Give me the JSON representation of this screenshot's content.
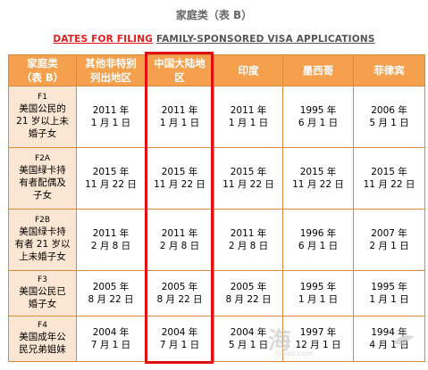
{
  "title": "家庭类（表 B）",
  "subtitle": {
    "part1": "DATES FOR FILING",
    "part2": "FAMILY-SPONSORED VISA APPLICATIONS"
  },
  "table": {
    "headers": [
      [
        "家庭类",
        "（表 B）"
      ],
      [
        "其他非特别",
        "列出地区"
      ],
      [
        "中国大陆地",
        "区"
      ],
      [
        "印度"
      ],
      [
        "墨西哥"
      ],
      [
        "菲律宾"
      ]
    ],
    "rows": [
      {
        "code": "F1",
        "desc": [
          "美国公民的",
          "21 岁以上未",
          "婚子女"
        ],
        "cells": [
          [
            "2011 年",
            "1 月 1 日"
          ],
          [
            "2011 年",
            "1 月 1 日"
          ],
          [
            "2011 年",
            "1 月 1 日"
          ],
          [
            "1995 年",
            "6 月 1 日"
          ],
          [
            "2006 年",
            "5 月 1 日"
          ]
        ]
      },
      {
        "code": "F2A",
        "desc": [
          "美国绿卡持",
          "有者配偶及",
          "子女"
        ],
        "cells": [
          [
            "2015 年",
            "11 月 22 日"
          ],
          [
            "2015 年",
            "11 月 22 日"
          ],
          [
            "2015 年",
            "11 月 22 日"
          ],
          [
            "2015 年",
            "11 月 22 日"
          ],
          [
            "2015 年",
            "11 月 22 日"
          ]
        ]
      },
      {
        "code": "F2B",
        "desc": [
          "美国绿卡持",
          "有者 21 岁以",
          "上未婚子女"
        ],
        "cells": [
          [
            "2011 年",
            "2 月 8 日"
          ],
          [
            "2011 年",
            "2 月 8 日"
          ],
          [
            "2011 年",
            "2 月 8 日"
          ],
          [
            "1996 年",
            "6 月 1 日"
          ],
          [
            "2007 年",
            "2 月 1 日"
          ]
        ]
      },
      {
        "code": "F3",
        "desc": [
          "美国公民已",
          "婚子女"
        ],
        "cells": [
          [
            "2005 年",
            "8 月 22 日"
          ],
          [
            "2005 年",
            "8 月 22 日"
          ],
          [
            "2005 年",
            "8 月 22 日"
          ],
          [
            "1995 年",
            "1 月 1 日"
          ],
          [
            "1995 年",
            "1 月 1 日"
          ]
        ]
      },
      {
        "code": "F4",
        "desc": [
          "美国成年公",
          "民兄弟姐妹"
        ],
        "cells": [
          [
            "2004 年",
            "7 月 1 日"
          ],
          [
            "2004 年",
            "7 月 1 日"
          ],
          [
            "2004 年",
            "5 月 1 日"
          ],
          [
            "1997 年",
            "12 月 1 日"
          ],
          [
            "1994 年",
            "4 月 1 日"
          ]
        ]
      }
    ]
  },
  "watermark": {
    "main": "海",
    "small": "hinad.com"
  },
  "colors": {
    "header_bg": "#f4a04c",
    "category_bg": "#fbe6d3",
    "border": "#d88a3a",
    "highlight": "#e01010",
    "subtitle_red": "#e31c1c"
  }
}
